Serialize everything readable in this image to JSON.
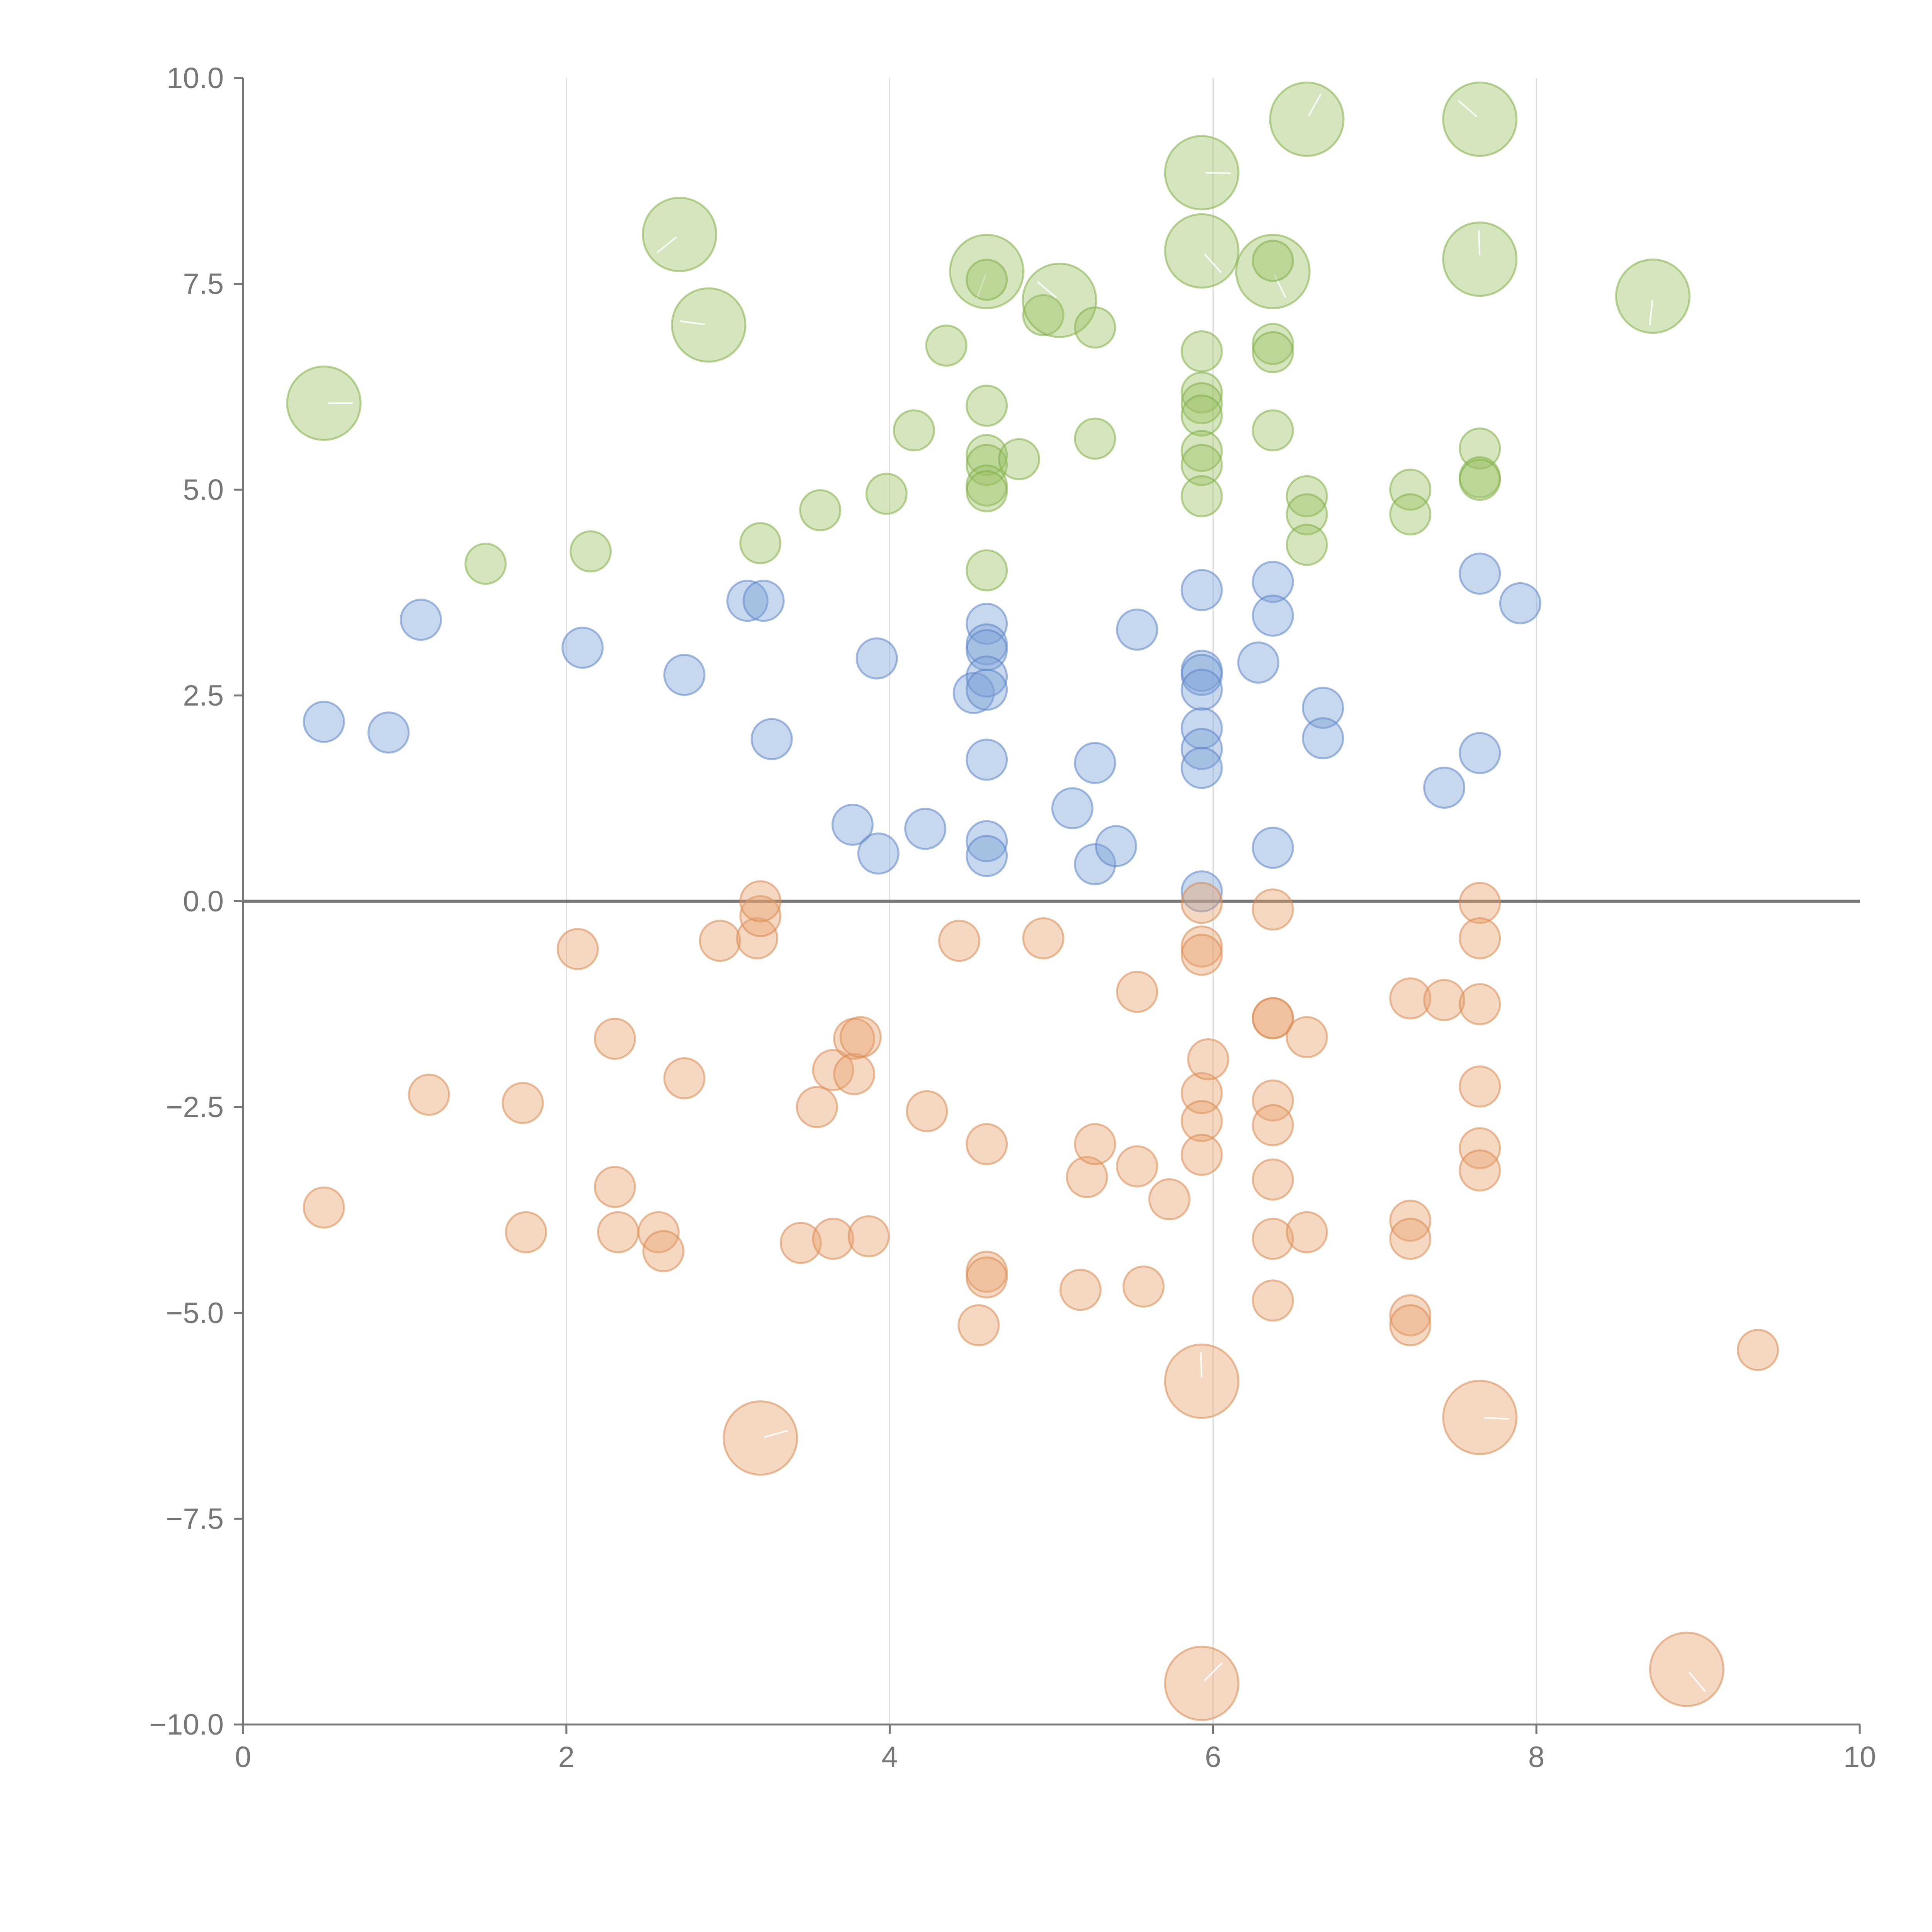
{
  "chart_data": {
    "type": "scatter",
    "title": "",
    "xlabel": "",
    "ylabel": "",
    "xlim": [
      0,
      10
    ],
    "ylim": [
      -10,
      10
    ],
    "grid": {
      "vertical": true,
      "horizontal": false
    },
    "x_ticks": [
      "0",
      "2",
      "4",
      "6",
      "8",
      "10"
    ],
    "y_ticks": [
      "10.0",
      "7.5",
      "5.0",
      "2.5",
      "0.0",
      "−2.5",
      "−5.0",
      "−7.5",
      "−10.0"
    ],
    "series": [
      {
        "name": "green",
        "color": "#9cc265",
        "stroke": "#7fae46",
        "points": [
          [
            0.5,
            6.05,
            "large"
          ],
          [
            1.5,
            4.1
          ],
          [
            2.15,
            4.25
          ],
          [
            2.7,
            8.1,
            "large"
          ],
          [
            2.88,
            7.0,
            "large"
          ],
          [
            3.2,
            4.35
          ],
          [
            3.57,
            4.75
          ],
          [
            3.98,
            4.95
          ],
          [
            4.15,
            5.72
          ],
          [
            4.35,
            6.75
          ],
          [
            4.6,
            7.65,
            "large"
          ],
          [
            4.6,
            7.55
          ],
          [
            4.6,
            6.02
          ],
          [
            4.6,
            5.42
          ],
          [
            4.6,
            5.3
          ],
          [
            4.6,
            5.05
          ],
          [
            4.6,
            4.98
          ],
          [
            4.6,
            4.02
          ],
          [
            4.8,
            5.37
          ],
          [
            4.95,
            7.12
          ],
          [
            5.05,
            7.3,
            "large"
          ],
          [
            5.27,
            6.97
          ],
          [
            5.27,
            5.62
          ],
          [
            5.93,
            8.85,
            "large"
          ],
          [
            5.93,
            7.9,
            "large"
          ],
          [
            5.93,
            6.68
          ],
          [
            5.93,
            6.18
          ],
          [
            5.93,
            6.05
          ],
          [
            5.93,
            5.9
          ],
          [
            5.93,
            5.47
          ],
          [
            5.93,
            5.3
          ],
          [
            5.93,
            4.92
          ],
          [
            6.37,
            7.65,
            "large"
          ],
          [
            6.37,
            7.78
          ],
          [
            6.37,
            6.77
          ],
          [
            6.37,
            6.67
          ],
          [
            6.37,
            5.72
          ],
          [
            6.58,
            9.5,
            "large"
          ],
          [
            6.58,
            4.92
          ],
          [
            6.58,
            4.7
          ],
          [
            6.58,
            4.33
          ],
          [
            7.22,
            5.0
          ],
          [
            7.22,
            4.7
          ],
          [
            7.65,
            9.5,
            "large"
          ],
          [
            7.65,
            7.8,
            "large"
          ],
          [
            7.65,
            5.5
          ],
          [
            7.65,
            5.15
          ],
          [
            7.65,
            5.12
          ],
          [
            8.72,
            7.35,
            "large"
          ]
        ]
      },
      {
        "name": "blue",
        "color": "#7a9fd6",
        "stroke": "#5b85c6",
        "points": [
          [
            0.5,
            2.18
          ],
          [
            0.9,
            2.05
          ],
          [
            1.1,
            3.42
          ],
          [
            2.1,
            3.08
          ],
          [
            2.73,
            2.75
          ],
          [
            3.12,
            3.65
          ],
          [
            3.22,
            3.65
          ],
          [
            3.27,
            1.97
          ],
          [
            3.77,
            0.93
          ],
          [
            3.92,
            2.95
          ],
          [
            3.93,
            0.58
          ],
          [
            4.22,
            0.88
          ],
          [
            4.52,
            2.53
          ],
          [
            4.6,
            3.37
          ],
          [
            4.6,
            3.12
          ],
          [
            4.6,
            3.05
          ],
          [
            4.6,
            2.73
          ],
          [
            4.6,
            2.57
          ],
          [
            4.6,
            1.72
          ],
          [
            4.6,
            0.73
          ],
          [
            4.6,
            0.55
          ],
          [
            5.13,
            1.13
          ],
          [
            5.27,
            1.68
          ],
          [
            5.27,
            0.45
          ],
          [
            5.4,
            0.67
          ],
          [
            5.53,
            3.3
          ],
          [
            5.93,
            3.78
          ],
          [
            5.93,
            2.8
          ],
          [
            5.93,
            2.75
          ],
          [
            5.93,
            2.57
          ],
          [
            5.93,
            2.1
          ],
          [
            5.93,
            1.85
          ],
          [
            5.93,
            1.62
          ],
          [
            5.93,
            0.12
          ],
          [
            6.28,
            2.9
          ],
          [
            6.37,
            3.88
          ],
          [
            6.37,
            3.47
          ],
          [
            6.37,
            0.65
          ],
          [
            6.68,
            2.35
          ],
          [
            6.68,
            1.98
          ],
          [
            7.43,
            1.38
          ],
          [
            7.65,
            3.98
          ],
          [
            7.65,
            1.8
          ],
          [
            7.9,
            3.62
          ]
        ]
      },
      {
        "name": "orange",
        "color": "#e8a36e",
        "stroke": "#d88a50",
        "points": [
          [
            0.5,
            -3.72
          ],
          [
            1.15,
            -2.35
          ],
          [
            1.73,
            -2.45
          ],
          [
            1.75,
            -4.02
          ],
          [
            2.07,
            -0.58
          ],
          [
            2.3,
            -1.67
          ],
          [
            2.3,
            -3.47
          ],
          [
            2.32,
            -4.02
          ],
          [
            2.57,
            -4.02
          ],
          [
            2.6,
            -4.25
          ],
          [
            2.73,
            -2.15
          ],
          [
            2.95,
            -0.48
          ],
          [
            3.18,
            -0.45
          ],
          [
            3.2,
            -0.18
          ],
          [
            3.2,
            0.0
          ],
          [
            3.2,
            -6.52,
            "large"
          ],
          [
            3.45,
            -4.15
          ],
          [
            3.55,
            -2.5
          ],
          [
            3.65,
            -2.05
          ],
          [
            3.65,
            -4.1
          ],
          [
            3.78,
            -1.67
          ],
          [
            3.78,
            -2.1
          ],
          [
            3.82,
            -1.65
          ],
          [
            3.87,
            -4.07
          ],
          [
            4.23,
            -2.55
          ],
          [
            4.43,
            -0.48
          ],
          [
            4.55,
            -5.15
          ],
          [
            4.6,
            -2.95
          ],
          [
            4.6,
            -4.5
          ],
          [
            4.6,
            -4.57
          ],
          [
            4.95,
            -0.45
          ],
          [
            5.18,
            -4.72
          ],
          [
            5.22,
            -3.35
          ],
          [
            5.27,
            -2.95
          ],
          [
            5.53,
            -3.22
          ],
          [
            5.53,
            -1.1
          ],
          [
            5.57,
            -4.68
          ],
          [
            5.73,
            -3.62
          ],
          [
            5.93,
            -0.02
          ],
          [
            5.93,
            -0.55
          ],
          [
            5.93,
            -0.65
          ],
          [
            5.93,
            -2.33
          ],
          [
            5.93,
            -2.67
          ],
          [
            5.93,
            -3.08
          ],
          [
            5.93,
            -5.83,
            "large"
          ],
          [
            5.93,
            -9.5,
            "large"
          ],
          [
            5.97,
            -1.92
          ],
          [
            6.37,
            -0.1
          ],
          [
            6.37,
            -1.42
          ],
          [
            6.37,
            -1.42
          ],
          [
            6.37,
            -2.42
          ],
          [
            6.37,
            -2.72
          ],
          [
            6.37,
            -3.38
          ],
          [
            6.37,
            -4.1
          ],
          [
            6.37,
            -4.85
          ],
          [
            6.58,
            -1.65
          ],
          [
            6.58,
            -4.02
          ],
          [
            7.22,
            -1.18
          ],
          [
            7.22,
            -3.88
          ],
          [
            7.22,
            -4.1
          ],
          [
            7.22,
            -5.03
          ],
          [
            7.22,
            -5.15
          ],
          [
            7.43,
            -1.2
          ],
          [
            7.65,
            -0.02
          ],
          [
            7.65,
            -0.45
          ],
          [
            7.65,
            -1.25
          ],
          [
            7.65,
            -2.25
          ],
          [
            7.65,
            -3.0
          ],
          [
            7.65,
            -3.27
          ],
          [
            7.65,
            -6.27,
            "large"
          ],
          [
            8.93,
            -9.33,
            "large"
          ],
          [
            9.37,
            -5.45
          ]
        ]
      }
    ]
  }
}
